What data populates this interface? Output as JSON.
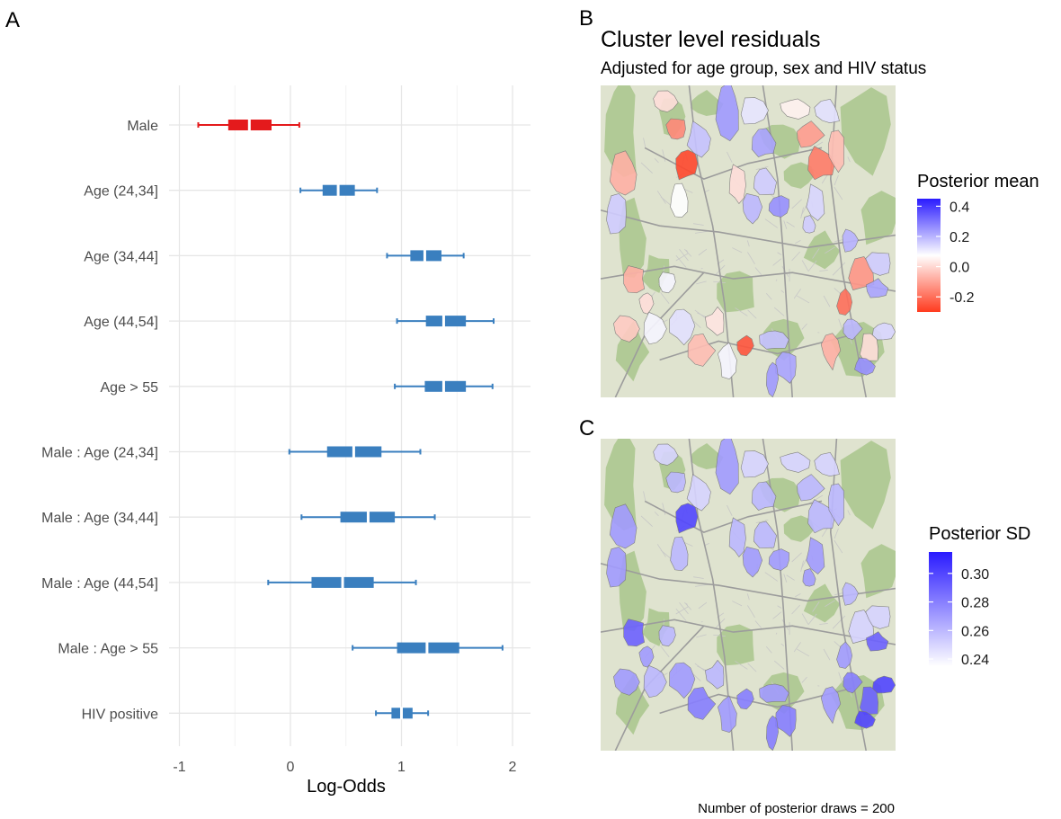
{
  "panels": {
    "a": "A",
    "b": "B",
    "c": "C"
  },
  "chart_data": [
    {
      "type": "boxplot",
      "panel": "A",
      "xlabel": "Log-Odds",
      "xlim": [
        -1.1,
        2.15
      ],
      "xticks": [
        -1,
        0,
        1,
        2
      ],
      "xtick_labels": [
        "-1",
        "0",
        "1",
        "2"
      ],
      "grid": true,
      "colors": {
        "negative": "#e41a1c",
        "positive": "#3a7fbf"
      },
      "rows": [
        {
          "label": "Male",
          "whisker_low": -0.83,
          "q1": -0.56,
          "median": -0.37,
          "q3": -0.17,
          "whisker_high": 0.08,
          "color": "#e41a1c"
        },
        {
          "label": "Age (24,34]",
          "whisker_low": 0.09,
          "q1": 0.29,
          "median": 0.43,
          "q3": 0.58,
          "whisker_high": 0.78,
          "color": "#3a7fbf"
        },
        {
          "label": "Age (34,44]",
          "whisker_low": 0.87,
          "q1": 1.08,
          "median": 1.21,
          "q3": 1.36,
          "whisker_high": 1.56,
          "color": "#3a7fbf"
        },
        {
          "label": "Age (44,54]",
          "whisker_low": 0.96,
          "q1": 1.22,
          "median": 1.38,
          "q3": 1.58,
          "whisker_high": 1.83,
          "color": "#3a7fbf"
        },
        {
          "label": "Age > 55",
          "whisker_low": 0.94,
          "q1": 1.21,
          "median": 1.38,
          "q3": 1.58,
          "whisker_high": 1.82,
          "color": "#3a7fbf"
        },
        {
          "label": "Male : Age (24,34]",
          "whisker_low": -0.01,
          "q1": 0.33,
          "median": 0.57,
          "q3": 0.82,
          "whisker_high": 1.17,
          "color": "#3a7fbf"
        },
        {
          "label": "Male : Age (34,44]",
          "whisker_low": 0.1,
          "q1": 0.45,
          "median": 0.7,
          "q3": 0.94,
          "whisker_high": 1.3,
          "color": "#3a7fbf"
        },
        {
          "label": "Male : Age (44,54]",
          "whisker_low": -0.2,
          "q1": 0.19,
          "median": 0.47,
          "q3": 0.75,
          "whisker_high": 1.13,
          "color": "#3a7fbf"
        },
        {
          "label": "Male : Age > 55",
          "whisker_low": 0.56,
          "q1": 0.96,
          "median": 1.23,
          "q3": 1.52,
          "whisker_high": 1.91,
          "color": "#3a7fbf"
        },
        {
          "label": "HIV positive",
          "whisker_low": 0.77,
          "q1": 0.91,
          "median": 1.0,
          "q3": 1.1,
          "whisker_high": 1.24,
          "color": "#3a7fbf"
        }
      ]
    },
    {
      "type": "choropleth",
      "panel": "B",
      "title": "Cluster level residuals",
      "subtitle": "Adjusted for age group, sex and HIV status",
      "legend": {
        "title": "Posterior mean",
        "scale": "diverging",
        "range": [
          -0.3,
          0.45
        ],
        "colors": {
          "low": "#ff3b1f",
          "mid": "#ffffff",
          "high": "#2a1bff"
        },
        "ticks": [
          0.4,
          0.2,
          0.0,
          -0.2
        ],
        "tick_labels": [
          "0.4",
          "0.2",
          "0.0",
          "-0.2"
        ]
      }
    },
    {
      "type": "choropleth",
      "panel": "C",
      "legend": {
        "title": "Posterior SD",
        "scale": "sequential",
        "range": [
          0.235,
          0.315
        ],
        "colors": {
          "low": "#ffffff",
          "high": "#2a1bff"
        },
        "ticks": [
          0.3,
          0.28,
          0.26,
          0.24
        ],
        "tick_labels": [
          "0.30",
          "0.28",
          "0.26",
          "0.24"
        ]
      }
    }
  ],
  "map_colors": {
    "terrain_base": "#dfe3cf",
    "forest": "#a9c58c",
    "road": "#9c9c9c"
  },
  "caption": "Number of posterior draws = 200"
}
